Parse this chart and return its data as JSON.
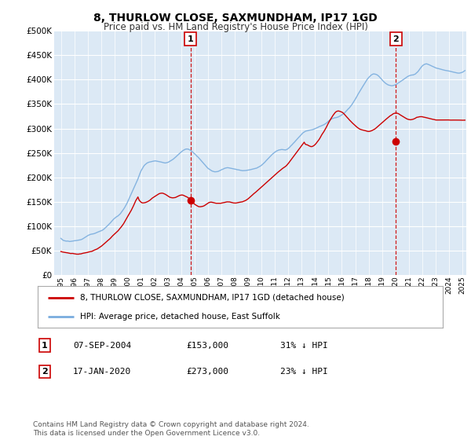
{
  "title": "8, THURLOW CLOSE, SAXMUNDHAM, IP17 1GD",
  "subtitle": "Price paid vs. HM Land Registry's House Price Index (HPI)",
  "legend_line1": "8, THURLOW CLOSE, SAXMUNDHAM, IP17 1GD (detached house)",
  "legend_line2": "HPI: Average price, detached house, East Suffolk",
  "footnote": "Contains HM Land Registry data © Crown copyright and database right 2024.\nThis data is licensed under the Open Government Licence v3.0.",
  "table": [
    {
      "num": "1",
      "date": "07-SEP-2004",
      "price": "£153,000",
      "hpi": "31% ↓ HPI"
    },
    {
      "num": "2",
      "date": "17-JAN-2020",
      "price": "£273,000",
      "hpi": "23% ↓ HPI"
    }
  ],
  "marker1_x": 2004.68,
  "marker1_y": 153000,
  "marker2_x": 2020.04,
  "marker2_y": 273000,
  "price_color": "#cc0000",
  "hpi_color": "#7aadde",
  "marker_box_color": "#cc0000",
  "background_color": "#dce9f5",
  "grid_color": "#ffffff",
  "ylim": [
    0,
    500000
  ],
  "xlim_start": 1994.5,
  "xlim_end": 2025.3,
  "hpi_months": 363,
  "hpi_start_year": 1995.0,
  "hpi_end_year": 2025.2,
  "hpi_smooth": [
    75000,
    73000,
    71000,
    70000,
    69500,
    69000,
    69000,
    68500,
    68000,
    68200,
    68500,
    69000,
    69500,
    70000,
    70500,
    71000,
    71500,
    72000,
    72500,
    73500,
    74500,
    76000,
    77500,
    79000,
    80500,
    82000,
    83000,
    84000,
    84500,
    85000,
    85500,
    86000,
    87000,
    88000,
    89000,
    90000,
    91000,
    92000,
    93500,
    95000,
    97000,
    99000,
    101000,
    103500,
    106000,
    108500,
    111000,
    113500,
    116000,
    118000,
    120000,
    121500,
    123000,
    125000,
    127000,
    130000,
    133000,
    136500,
    140000,
    144000,
    148000,
    153000,
    158000,
    163000,
    168000,
    173000,
    178000,
    183000,
    188000,
    193000,
    198000,
    204000,
    210000,
    215000,
    219000,
    223000,
    226000,
    228000,
    230000,
    231500,
    232500,
    233000,
    233500,
    234000,
    234500,
    235000,
    235000,
    234500,
    234000,
    233500,
    233000,
    232500,
    232000,
    231500,
    231000,
    231000,
    231500,
    232000,
    233000,
    234500,
    236000,
    237500,
    239000,
    241000,
    243000,
    245000,
    247000,
    249000,
    251000,
    253000,
    255000,
    257000,
    258000,
    259000,
    259500,
    259500,
    259000,
    258000,
    256500,
    254500,
    252500,
    250500,
    248500,
    246000,
    244000,
    241500,
    239000,
    236500,
    234000,
    231500,
    229000,
    226500,
    224000,
    221500,
    219500,
    218000,
    216500,
    215000,
    214000,
    213500,
    213000,
    213000,
    213500,
    214000,
    215000,
    216000,
    217500,
    218500,
    219500,
    220500,
    221000,
    221500,
    221500,
    221000,
    220500,
    220000,
    219500,
    219000,
    218500,
    218000,
    217500,
    217000,
    216500,
    216000,
    215500,
    215000,
    215000,
    215000,
    215000,
    215500,
    216000,
    216500,
    217000,
    217500,
    218000,
    218500,
    219000,
    219500,
    220000,
    221000,
    222000,
    223500,
    225000,
    227000,
    229000,
    231000,
    233500,
    236000,
    238500,
    241000,
    243500,
    246000,
    248000,
    250000,
    252000,
    253500,
    255000,
    256000,
    257000,
    257500,
    258000,
    258000,
    257500,
    257000,
    257000,
    258000,
    259000,
    261000,
    263000,
    265000,
    267000,
    269500,
    271500,
    274000,
    276500,
    279000,
    281500,
    284000,
    286500,
    289000,
    291000,
    292500,
    294000,
    295000,
    295500,
    296000,
    296500,
    297000,
    297500,
    298000,
    299000,
    300000,
    301000,
    302000,
    303000,
    304000,
    305000,
    306000,
    307000,
    308000,
    309500,
    311000,
    313000,
    315000,
    317000,
    318500,
    320000,
    321000,
    321500,
    322000,
    322500,
    323000,
    323500,
    324500,
    326000,
    327500,
    329000,
    330500,
    332500,
    335000,
    337500,
    340000,
    342500,
    345500,
    348500,
    352000,
    355500,
    359000,
    363000,
    367000,
    371000,
    375000,
    378500,
    382500,
    386000,
    389500,
    393000,
    397000,
    400500,
    403500,
    406000,
    408000,
    410000,
    411500,
    412000,
    412000,
    411500,
    410500,
    409000,
    407000,
    404500,
    402000,
    399500,
    397000,
    395000,
    393000,
    391500,
    390000,
    389000,
    388500,
    388000,
    388000,
    388500,
    389000,
    390000,
    391000,
    392500,
    394000,
    395500,
    397000,
    398500,
    400000,
    401500,
    403000,
    404500,
    406000,
    407000,
    408000,
    408500,
    409000,
    409000,
    410000,
    411000,
    413000,
    415000,
    418000,
    421000,
    424000,
    426500,
    428500,
    430000,
    431000,
    431500,
    431000,
    430000,
    429000,
    428000,
    427000,
    426000,
    425000,
    424000,
    423000,
    422500,
    422000,
    421500,
    421000,
    420500,
    420000,
    419500,
    419000,
    418500,
    418000,
    417500,
    417000,
    416500,
    416000,
    415500,
    415000,
    414500,
    414000,
    413500,
    413000,
    413000,
    413500,
    414000,
    415000,
    416500,
    418000
  ],
  "price_smooth": [
    48000,
    47500,
    47000,
    46500,
    46000,
    45500,
    45000,
    44500,
    44000,
    43500,
    43500,
    43500,
    43000,
    42800,
    42500,
    42500,
    42500,
    43000,
    43000,
    43500,
    44000,
    44500,
    45000,
    45500,
    46000,
    46500,
    47000,
    47500,
    48000,
    49000,
    50000,
    51000,
    52000,
    53000,
    54500,
    56000,
    57500,
    59000,
    61000,
    63000,
    65000,
    67000,
    69000,
    71000,
    73000,
    75000,
    77500,
    80000,
    82000,
    84000,
    86000,
    88000,
    90000,
    92500,
    95000,
    98000,
    101000,
    104000,
    108000,
    112000,
    116000,
    120000,
    124000,
    128000,
    132000,
    136500,
    141000,
    146000,
    151000,
    155000,
    159000,
    153000,
    150000,
    148000,
    147000,
    147000,
    147500,
    148000,
    149000,
    150000,
    151500,
    153000,
    155000,
    157000,
    158500,
    160000,
    161500,
    163000,
    164500,
    166000,
    167000,
    167500,
    167500,
    167000,
    166000,
    165000,
    163500,
    162000,
    160500,
    159000,
    158500,
    158000,
    158000,
    158500,
    159000,
    160000,
    161000,
    162000,
    163000,
    163500,
    163500,
    163000,
    162000,
    161000,
    160000,
    159000,
    157500,
    155500,
    153000,
    150500,
    148000,
    146000,
    144000,
    142500,
    141000,
    140000,
    139500,
    139500,
    140000,
    140500,
    141500,
    143000,
    144500,
    146000,
    147500,
    148500,
    149000,
    149000,
    148500,
    148000,
    147500,
    147000,
    147000,
    147000,
    147000,
    147000,
    147500,
    148000,
    148500,
    149000,
    149500,
    150000,
    150000,
    150000,
    149500,
    149000,
    148500,
    148000,
    148000,
    148000,
    148500,
    149000,
    149500,
    150000,
    150500,
    151000,
    152000,
    153000,
    154000,
    155500,
    157000,
    159000,
    161000,
    163000,
    165000,
    167000,
    169000,
    171000,
    173000,
    175000,
    177000,
    179000,
    181000,
    183000,
    185000,
    187000,
    189000,
    191000,
    193000,
    195000,
    197000,
    199000,
    201000,
    203000,
    205000,
    207000,
    209000,
    211000,
    213000,
    215000,
    217000,
    219000,
    220500,
    222000,
    223500,
    225500,
    228000,
    231000,
    234000,
    237000,
    240000,
    243000,
    246000,
    249000,
    252000,
    255000,
    258000,
    261000,
    264000,
    267000,
    270000,
    273000,
    269000,
    268000,
    267500,
    266000,
    265000,
    264000,
    264000,
    265000,
    266500,
    268500,
    271000,
    274000,
    277000,
    280000,
    284000,
    288000,
    291500,
    295000,
    299000,
    303000,
    307500,
    312000,
    316000,
    320000,
    323500,
    327000,
    330000,
    333000,
    335000,
    336000,
    336500,
    336000,
    335000,
    334000,
    332500,
    330500,
    328000,
    325500,
    323000,
    320500,
    318000,
    315500,
    313000,
    311000,
    309000,
    307000,
    305000,
    303000,
    301500,
    300000,
    299000,
    298000,
    297500,
    297000,
    296500,
    296000,
    295500,
    295000,
    295000,
    295500,
    296000,
    297000,
    298000,
    299500,
    301000,
    303000,
    305000,
    307000,
    309000,
    311000,
    313000,
    315000,
    317000,
    319000,
    321000,
    323000,
    325000,
    326500,
    328000,
    329500,
    331000,
    332000,
    332500,
    332500,
    332000,
    331000,
    329500,
    328000,
    326500,
    325000,
    323500,
    322000,
    321000,
    320000,
    319500,
    319000,
    319000,
    319500,
    320000,
    321000,
    322000,
    323500,
    324000,
    324500,
    325000,
    325000,
    325000,
    324500,
    324000,
    323500,
    323000,
    322500,
    322000,
    321500,
    321000,
    320500,
    320000,
    319500,
    319000,
    318500,
    318500,
    318500,
    318500,
    318500,
    318500,
    318500,
    318500,
    318500,
    318500,
    318500,
    318500,
    318500,
    318500,
    318500,
    318500,
    318500,
    318500,
    318500,
    318500,
    318500,
    318500,
    318500,
    318500,
    318500,
    318500,
    318500
  ]
}
